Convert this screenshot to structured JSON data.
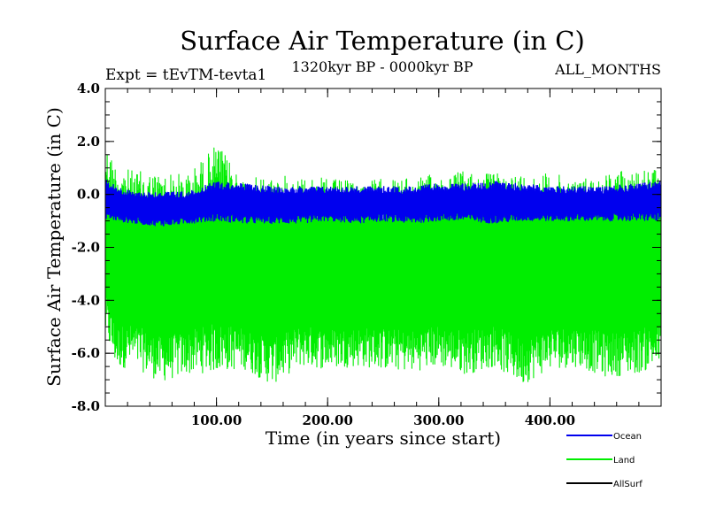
{
  "chart_data": {
    "type": "line",
    "title": "Surface Air Temperature (in C)",
    "subtitle_left": "Expt = tEvTM-tevta1",
    "subtitle_center": "1320kyr BP - 0000kyr BP",
    "subtitle_right": "ALL_MONTHS",
    "xlabel": "Time (in years since start)",
    "ylabel": "Surface Air Temperature (in C)",
    "xlim": [
      0,
      500
    ],
    "ylim": [
      -8.0,
      4.0
    ],
    "x_ticks": [
      100,
      200,
      300,
      400
    ],
    "x_tick_labels": [
      "100.00",
      "200.00",
      "300.00",
      "400.00"
    ],
    "y_ticks": [
      4.0,
      2.0,
      0.0,
      -2.0,
      -4.0,
      -6.0,
      -8.0
    ],
    "y_tick_labels": [
      "4.0",
      "2.0",
      "0.0",
      "-2.0",
      "-4.0",
      "-6.0",
      "-8.0"
    ],
    "legend_position": "bottom-right outside",
    "series": [
      {
        "name": "Land",
        "color": "#00ee00",
        "sampling": "monthly",
        "envelope_x": [
          0,
          10,
          25,
          50,
          75,
          100,
          125,
          150,
          175,
          200,
          225,
          250,
          275,
          300,
          325,
          350,
          375,
          400,
          425,
          450,
          475,
          500
        ],
        "envelope_max": [
          1.9,
          1.1,
          0.9,
          0.8,
          0.8,
          1.9,
          0.6,
          0.7,
          0.7,
          0.6,
          0.5,
          0.6,
          0.6,
          0.8,
          0.9,
          0.8,
          0.8,
          0.8,
          0.6,
          0.8,
          1.0,
          0.9
        ],
        "envelope_min": [
          -5.4,
          -6.6,
          -6.5,
          -7.1,
          -6.8,
          -6.7,
          -6.6,
          -7.2,
          -6.5,
          -6.6,
          -6.5,
          -6.6,
          -6.7,
          -6.5,
          -6.8,
          -6.5,
          -7.2,
          -6.6,
          -6.5,
          -6.9,
          -6.8,
          -6.5
        ]
      },
      {
        "name": "Ocean",
        "color": "#0000ee",
        "sampling": "monthly",
        "envelope_x": [
          0,
          10,
          25,
          50,
          75,
          100,
          125,
          150,
          175,
          200,
          225,
          250,
          275,
          300,
          325,
          350,
          375,
          400,
          425,
          450,
          475,
          500
        ],
        "envelope_max": [
          0.6,
          0.3,
          0.1,
          0.1,
          0.1,
          0.5,
          0.4,
          0.3,
          0.3,
          0.3,
          0.3,
          0.3,
          0.3,
          0.4,
          0.4,
          0.5,
          0.4,
          0.3,
          0.3,
          0.3,
          0.4,
          0.5
        ],
        "envelope_min": [
          -0.9,
          -1.0,
          -1.1,
          -1.2,
          -1.1,
          -1.0,
          -1.1,
          -1.1,
          -1.1,
          -1.0,
          -1.1,
          -1.0,
          -1.1,
          -1.0,
          -1.0,
          -1.1,
          -1.0,
          -1.0,
          -1.0,
          -1.0,
          -1.0,
          -1.0
        ]
      },
      {
        "name": "AllSurf",
        "color": "#000000",
        "sampling": "monthly",
        "note": "hidden beneath other series"
      }
    ]
  }
}
